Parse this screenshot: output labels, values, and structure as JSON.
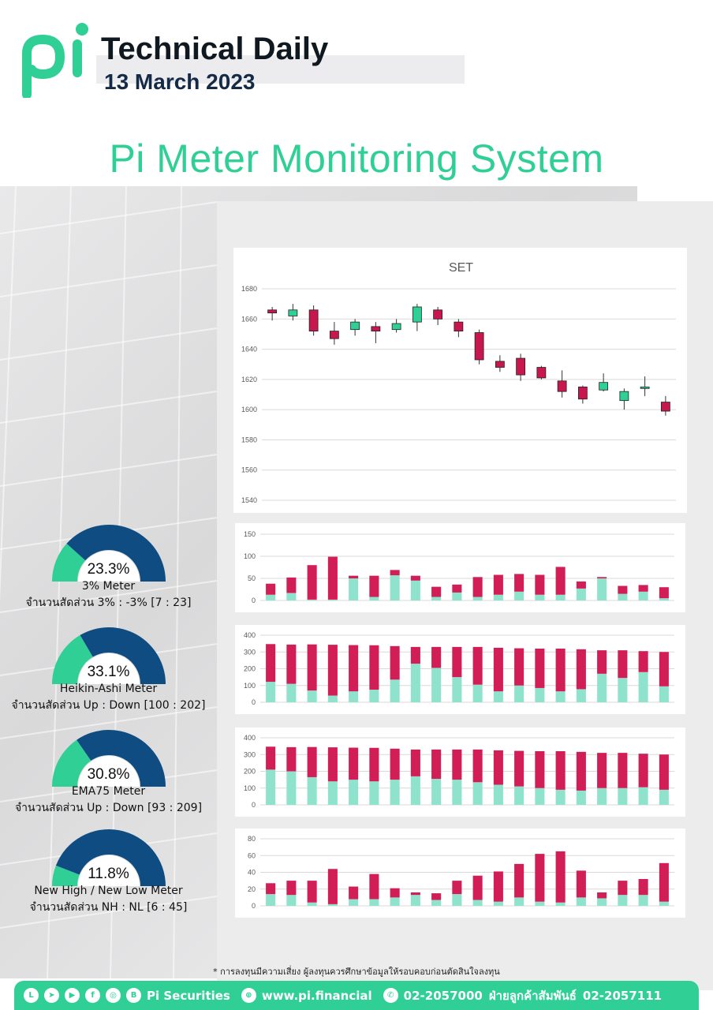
{
  "header": {
    "logo_text": "pi",
    "title": "Technical Daily",
    "date": "13 March 2023"
  },
  "headline": "Pi Meter Monitoring System",
  "colors": {
    "brand_green": "#2fcf96",
    "navy": "#0f4c81",
    "candle_down": "#c8174f",
    "candle_up": "#2fcf96",
    "bar_green": "#8fe3cc",
    "bar_red": "#d11e56"
  },
  "gauges": [
    {
      "percent": "23.3%",
      "value": 0.233,
      "name": "3% Meter",
      "ratio": "จำนวนสัดส่วน 3% : -3% [7 : 23]"
    },
    {
      "percent": "33.1%",
      "value": 0.331,
      "name": "Heikin-Ashi Meter",
      "ratio": "จำนวนสัดส่วน Up : Down [100 : 202]"
    },
    {
      "percent": "30.8%",
      "value": 0.308,
      "name": "EMA75 Meter",
      "ratio": "จำนวนสัดส่วน Up : Down [93 : 209]"
    },
    {
      "percent": "11.8%",
      "value": 0.118,
      "name": "New High / New Low Meter",
      "ratio": "จำนวนสัดส่วน NH : NL [6 : 45]"
    }
  ],
  "chart_data": [
    {
      "type": "candlestick",
      "title": "SET",
      "ylim": [
        1540,
        1680
      ],
      "yticks": [
        1540,
        1560,
        1580,
        1600,
        1620,
        1640,
        1660,
        1680
      ],
      "grid": true,
      "candles": [
        {
          "o": 1666,
          "h": 1668,
          "l": 1659,
          "c": 1664
        },
        {
          "o": 1662,
          "h": 1670,
          "l": 1659,
          "c": 1666
        },
        {
          "o": 1666,
          "h": 1669,
          "l": 1649,
          "c": 1652
        },
        {
          "o": 1652,
          "h": 1658,
          "l": 1643,
          "c": 1647
        },
        {
          "o": 1653,
          "h": 1660,
          "l": 1649,
          "c": 1658
        },
        {
          "o": 1655,
          "h": 1658,
          "l": 1644,
          "c": 1652
        },
        {
          "o": 1653,
          "h": 1660,
          "l": 1651,
          "c": 1657
        },
        {
          "o": 1658,
          "h": 1670,
          "l": 1652,
          "c": 1668
        },
        {
          "o": 1666,
          "h": 1668,
          "l": 1656,
          "c": 1660
        },
        {
          "o": 1658,
          "h": 1660,
          "l": 1648,
          "c": 1652
        },
        {
          "o": 1651,
          "h": 1653,
          "l": 1630,
          "c": 1633
        },
        {
          "o": 1632,
          "h": 1636,
          "l": 1625,
          "c": 1628
        },
        {
          "o": 1634,
          "h": 1637,
          "l": 1619,
          "c": 1623
        },
        {
          "o": 1628,
          "h": 1629,
          "l": 1620,
          "c": 1621
        },
        {
          "o": 1619,
          "h": 1626,
          "l": 1608,
          "c": 1612
        },
        {
          "o": 1615,
          "h": 1616,
          "l": 1604,
          "c": 1607
        },
        {
          "o": 1613,
          "h": 1624,
          "l": 1612,
          "c": 1618
        },
        {
          "o": 1606,
          "h": 1614,
          "l": 1600,
          "c": 1612
        },
        {
          "o": 1614,
          "h": 1622,
          "l": 1609,
          "c": 1615
        },
        {
          "o": 1605,
          "h": 1609,
          "l": 1596,
          "c": 1599
        }
      ]
    },
    {
      "type": "stacked-bar",
      "ylim": [
        0,
        150
      ],
      "yticks": [
        0,
        50,
        100,
        150
      ],
      "series": [
        {
          "values": [
            13,
            17,
            2,
            2,
            50,
            8,
            57,
            45,
            8,
            18,
            8,
            13,
            20,
            13,
            13,
            27,
            50,
            15,
            20,
            5
          ]
        },
        {
          "values": [
            25,
            35,
            78,
            97,
            6,
            48,
            12,
            11,
            23,
            18,
            45,
            45,
            40,
            45,
            63,
            16,
            3,
            18,
            15,
            25
          ]
        }
      ]
    },
    {
      "type": "stacked-bar",
      "ylim": [
        0,
        400
      ],
      "yticks": [
        0,
        100,
        200,
        300,
        400
      ],
      "series": [
        {
          "values": [
            122,
            110,
            70,
            40,
            65,
            75,
            135,
            230,
            205,
            150,
            105,
            65,
            100,
            85,
            65,
            78,
            170,
            145,
            180,
            95
          ]
        },
        {
          "values": [
            225,
            234,
            275,
            303,
            276,
            265,
            200,
            100,
            125,
            180,
            225,
            260,
            222,
            235,
            255,
            238,
            140,
            165,
            125,
            205
          ]
        }
      ]
    },
    {
      "type": "stacked-bar",
      "ylim": [
        0,
        400
      ],
      "yticks": [
        0,
        100,
        200,
        300,
        400
      ],
      "series": [
        {
          "values": [
            210,
            200,
            165,
            140,
            150,
            140,
            150,
            170,
            155,
            150,
            135,
            120,
            110,
            100,
            90,
            85,
            100,
            100,
            105,
            90
          ]
        },
        {
          "values": [
            137,
            144,
            180,
            203,
            191,
            200,
            185,
            160,
            175,
            180,
            195,
            205,
            212,
            220,
            230,
            231,
            210,
            210,
            200,
            210
          ]
        }
      ]
    },
    {
      "type": "stacked-bar",
      "ylim": [
        0,
        80
      ],
      "yticks": [
        0,
        20,
        40,
        60,
        80
      ],
      "series": [
        {
          "values": [
            14,
            13,
            4,
            2,
            8,
            8,
            10,
            13,
            7,
            14,
            7,
            5,
            10,
            5,
            4,
            10,
            9,
            13,
            13,
            5
          ]
        },
        {
          "values": [
            13,
            17,
            26,
            42,
            15,
            30,
            11,
            3,
            8,
            16,
            29,
            36,
            40,
            57,
            61,
            32,
            7,
            17,
            19,
            46
          ]
        }
      ]
    }
  ],
  "disclaimer": "* การลงทุนมีความเสี่ยง ผู้ลงทุนควรศึกษาข้อมูลให้รอบคอบก่อนตัดสินใจลงทุน",
  "footer": {
    "company": "Pi Securities",
    "website": "www.pi.financial",
    "phone": "02-2057000",
    "service_label": "ฝ่ายลูกค้าสัมพันธ์",
    "service_phone": "02-2057111",
    "social_icons": [
      "line-icon",
      "telegram-icon",
      "youtube-icon",
      "facebook-icon",
      "instagram-icon",
      "blockdit-icon"
    ]
  }
}
